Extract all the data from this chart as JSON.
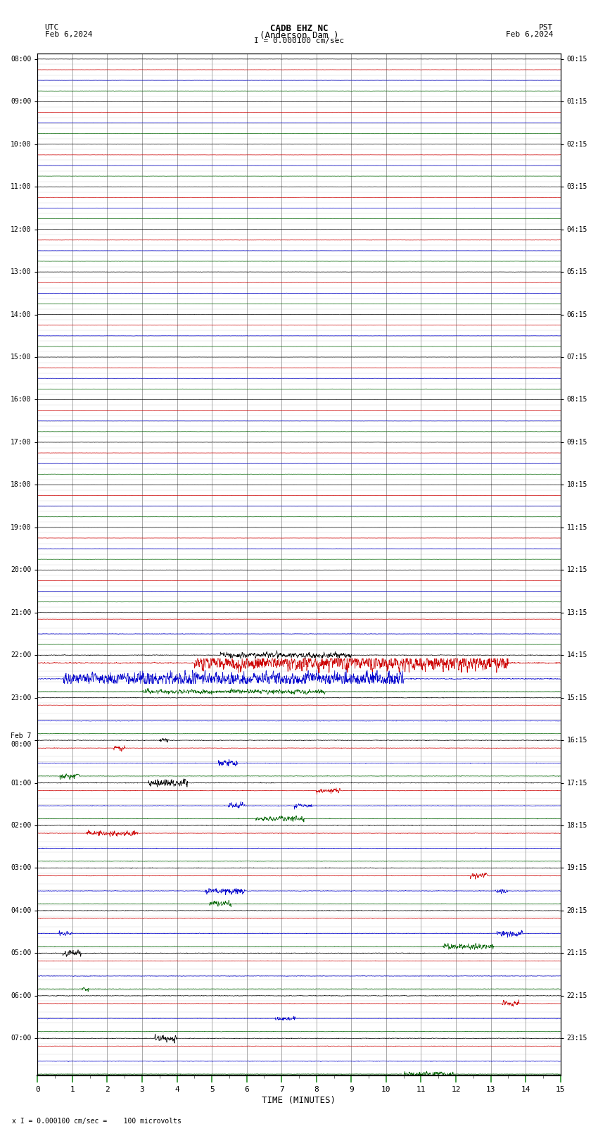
{
  "title_line1": "CADB EHZ NC",
  "title_line2": "(Anderson Dam )",
  "scale_label": "I = 0.000100 cm/sec",
  "utc_label_line1": "UTC",
  "utc_label_line2": "Feb 6,2024",
  "pst_label_line1": "PST",
  "pst_label_line2": "Feb 6,2024",
  "bottom_label": "x I = 0.000100 cm/sec =    100 microvolts",
  "xlabel": "TIME (MINUTES)",
  "background_color": "#ffffff",
  "grid_color": "#999999",
  "line_colors_cycle": [
    "#000000",
    "#cc0000",
    "#0000cc",
    "#006400"
  ],
  "xlim": [
    0,
    15
  ],
  "xticks": [
    0,
    1,
    2,
    3,
    4,
    5,
    6,
    7,
    8,
    9,
    10,
    11,
    12,
    13,
    14,
    15
  ],
  "figsize": [
    8.5,
    16.13
  ],
  "dpi": 100,
  "num_hours": 24,
  "traces_per_hour": 4,
  "hour_labels_left": [
    "08:00",
    "09:00",
    "10:00",
    "11:00",
    "12:00",
    "13:00",
    "14:00",
    "15:00",
    "16:00",
    "17:00",
    "18:00",
    "19:00",
    "20:00",
    "21:00",
    "22:00",
    "23:00",
    "Feb 7\n00:00",
    "01:00",
    "02:00",
    "03:00",
    "04:00",
    "05:00",
    "06:00",
    "07:00"
  ],
  "hour_labels_right": [
    "00:15",
    "01:15",
    "02:15",
    "03:15",
    "04:15",
    "05:15",
    "06:15",
    "07:15",
    "08:15",
    "09:15",
    "10:15",
    "11:15",
    "12:15",
    "13:15",
    "14:15",
    "15:15",
    "16:15",
    "17:15",
    "18:15",
    "19:15",
    "20:15",
    "21:15",
    "22:15",
    "23:15"
  ]
}
